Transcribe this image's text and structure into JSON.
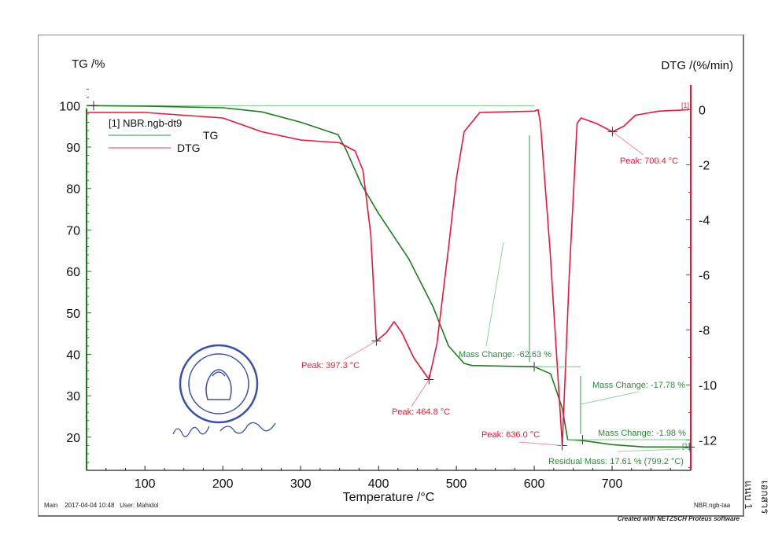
{
  "chart_data": {
    "type": "line",
    "xlabel": "Temperature /°C",
    "ylabel_left": "TG /%",
    "ylabel_right": "DTG /(%/min)",
    "xlim": [
      25,
      801
    ],
    "ylim_left": [
      12,
      105
    ],
    "ylim_right": [
      -13.1,
      0.9
    ],
    "x_ticks": [
      100,
      200,
      300,
      400,
      500,
      600,
      700
    ],
    "y_ticks_left": [
      100,
      90,
      80,
      70,
      60,
      50,
      40,
      30,
      20
    ],
    "y_ticks_right": [
      0,
      -2,
      -4,
      -6,
      -8,
      -10,
      -12
    ],
    "grid": false,
    "legend": {
      "placement": "top-left",
      "title": "[1] NBR.ngb-dt9",
      "entries": [
        "TG",
        "DTG"
      ]
    },
    "colors": {
      "TG": "#1e7d1e",
      "DTG": "#f0143c",
      "annotation_green": "#2e8b3e",
      "annotation_red": "#e8203c"
    },
    "series": [
      {
        "name": "TG",
        "axis": "left",
        "x": [
          25,
          100,
          200,
          250,
          300,
          348,
          358,
          378,
          400,
          439,
          470,
          490,
          510,
          520,
          600,
          621,
          636,
          643,
          662,
          700,
          740,
          799
        ],
        "y": [
          100,
          99.9,
          99.5,
          98.5,
          96,
          93,
          89.5,
          81,
          74,
          63,
          51.5,
          42,
          37.8,
          37.3,
          37,
          35.3,
          27,
          19.4,
          19.2,
          18.2,
          17.65,
          17.61
        ]
      },
      {
        "name": "DTG",
        "axis": "right",
        "x": [
          25,
          100,
          150,
          200,
          250,
          300,
          350,
          370,
          380,
          390,
          397.3,
          410,
          420,
          430,
          445,
          464.8,
          475,
          490,
          500,
          510,
          530,
          600,
          605,
          608,
          620,
          636,
          645,
          655,
          660,
          680,
          700.4,
          715,
          730,
          760,
          799
        ],
        "y": [
          -0.1,
          -0.1,
          -0.2,
          -0.3,
          -0.8,
          -1.1,
          -1.2,
          -1.5,
          -2.2,
          -4.5,
          -8.4,
          -8.1,
          -7.7,
          -8.1,
          -9.0,
          -9.8,
          -8.5,
          -5,
          -2.5,
          -0.8,
          -0.1,
          -0.05,
          0,
          -0.5,
          -5,
          -12.2,
          -6,
          -0.5,
          -0.3,
          -0.5,
          -0.8,
          -0.6,
          -0.2,
          -0.05,
          0
        ]
      }
    ],
    "annotations": {
      "peaks": [
        "Peak: 397.3 °C",
        "Peak: 464.8 °C",
        "Peak: 636.0 °C",
        "Peak: 700.4 °C"
      ],
      "mass_changes": [
        "Mass Change: -62.63 %",
        "Mass Change: -17.78 %",
        "Mass Change: -1.98 %"
      ],
      "residual": "Residual Mass: 17.61 % (799.2 °C)",
      "curve_marker": "[1]"
    }
  },
  "footer": {
    "main": "Main",
    "datetime": "2017-04-04 10:48",
    "user": "User: Mahidol",
    "file": "NBR.ngb-taa",
    "credit": "Created with NETZSCH Proteus software"
  },
  "side_note": "เอกสารแนบ 1"
}
